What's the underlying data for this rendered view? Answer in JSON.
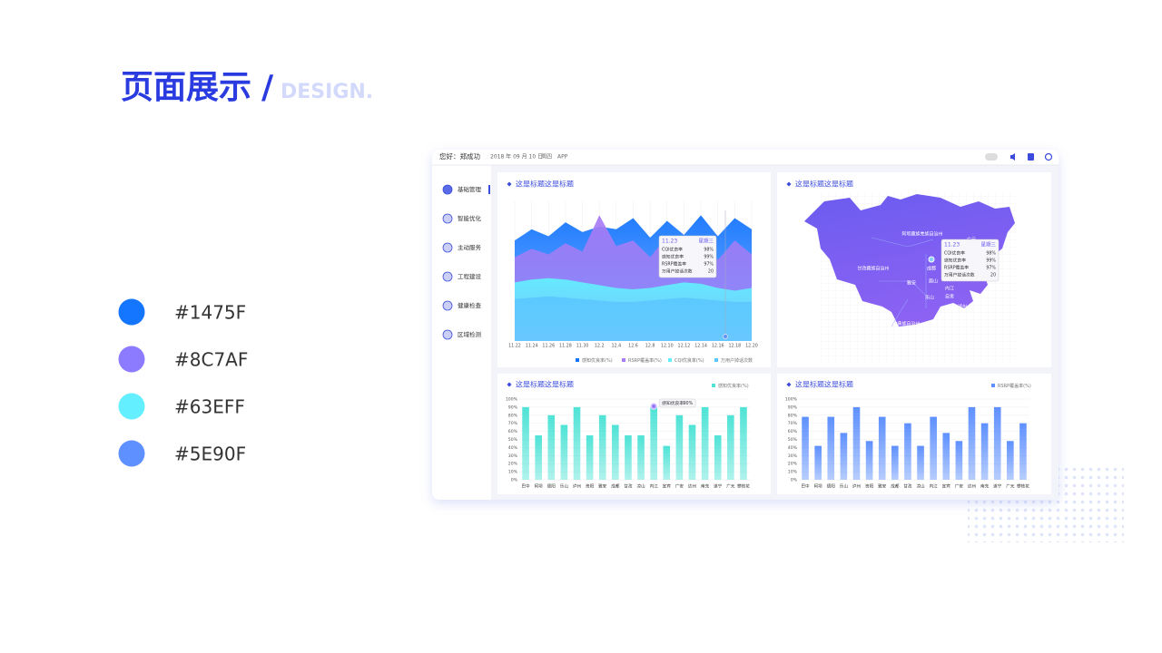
{
  "header": {
    "title": "页面展示",
    "slash": "/",
    "subtitle": "DESIGN."
  },
  "palette": [
    {
      "label": "#1475F",
      "color": "#1475ff"
    },
    {
      "label": "#8C7AF",
      "color": "#8c7aff"
    },
    {
      "label": "#63EFF",
      "color": "#63efff"
    },
    {
      "label": "#5E90F",
      "color": "#5e90ff"
    }
  ],
  "topbar": {
    "greeting": "您好：郑成功",
    "date": "2018 年 09 月 10 日",
    "weekday": "周四",
    "app": "APP"
  },
  "menu": [
    "基础管理",
    "智能优化",
    "主动服务",
    "工程建设",
    "健康检查",
    "区域检测"
  ],
  "chart_data": [
    {
      "type": "area",
      "title": "这是标题这是标题",
      "categories": [
        "11.22",
        "11.24",
        "11.26",
        "11.28",
        "11.30",
        "12.2",
        "12.4",
        "12.6",
        "12.8",
        "12.10",
        "12.12",
        "12.14",
        "12.16",
        "12.18",
        "12.20"
      ],
      "ylim": [
        0,
        100
      ],
      "series": [
        {
          "name": "感知优良率(%)",
          "color": "#1475ff",
          "values": [
            72,
            80,
            75,
            85,
            78,
            82,
            80,
            88,
            74,
            86,
            76,
            90,
            75,
            88,
            80
          ]
        },
        {
          "name": "RSRP覆盖率(%)",
          "color": "#a77cf5",
          "values": [
            60,
            66,
            62,
            70,
            64,
            90,
            68,
            72,
            60,
            75,
            62,
            70,
            58,
            72,
            62
          ]
        },
        {
          "name": "CQI优良率(%)",
          "color": "#63efff",
          "values": [
            42,
            44,
            45,
            44,
            42,
            40,
            38,
            37,
            38,
            40,
            42,
            41,
            38,
            36,
            38
          ]
        },
        {
          "name": "万用户掉话次数",
          "color": "#5bc7ff",
          "values": [
            30,
            31,
            32,
            31,
            30,
            29,
            28,
            28,
            29,
            30,
            31,
            30,
            29,
            28,
            28
          ]
        }
      ],
      "tooltip": {
        "title": "11.23",
        "weekday": "星期三",
        "rows": [
          {
            "name": "CQI优良率",
            "value": "98%"
          },
          {
            "name": "感知优良率",
            "value": "99%"
          },
          {
            "name": "RSRP覆盖率",
            "value": "97%"
          },
          {
            "name": "万用户掉话次数",
            "value": "20"
          }
        ]
      }
    },
    {
      "type": "bar",
      "title": "这是标题这是标题",
      "categories": [
        "巴中",
        "阿坝",
        "德阳",
        "乐山",
        "泸州",
        "资阳",
        "雅安",
        "成都",
        "甘孜",
        "凉山",
        "内江",
        "宜宾",
        "广安",
        "达州",
        "南充",
        "遂宁",
        "广元",
        "攀枝花"
      ],
      "series": [
        {
          "name": "感知优良率(%)",
          "color": "#4fe3d6",
          "values": [
            90,
            55,
            80,
            68,
            90,
            55,
            80,
            68,
            55,
            55,
            90,
            42,
            80,
            68,
            90,
            55,
            80,
            90
          ]
        }
      ],
      "ylim": [
        0,
        100
      ],
      "yticks": [
        {
          "value": 0,
          "label": "0%"
        },
        {
          "value": 10,
          "label": "10%"
        },
        {
          "value": 20,
          "label": "20%"
        },
        {
          "value": 30,
          "label": "30%"
        },
        {
          "value": 40,
          "label": "40%"
        },
        {
          "value": 50,
          "label": "50%"
        },
        {
          "value": 60,
          "label": "60%"
        },
        {
          "value": 70,
          "label": "70%"
        },
        {
          "value": 80,
          "label": "80%"
        },
        {
          "value": 90,
          "label": "90%"
        },
        {
          "value": 100,
          "label": "100%"
        }
      ],
      "tooltip": {
        "name": "感知优良率",
        "value": "90%"
      }
    },
    {
      "type": "bar",
      "title": "这是标题这是标题",
      "categories": [
        "巴中",
        "阿坝",
        "德阳",
        "乐山",
        "泸州",
        "资阳",
        "雅安",
        "成都",
        "甘孜",
        "凉山",
        "内江",
        "宜宾",
        "广安",
        "达州",
        "南充",
        "遂宁",
        "广元",
        "攀枝花"
      ],
      "series": [
        {
          "name": "RSRP覆盖率(%)",
          "color": "#5e90ff",
          "values": [
            78,
            42,
            78,
            58,
            90,
            48,
            78,
            42,
            70,
            42,
            78,
            58,
            48,
            90,
            70,
            90,
            48,
            70
          ]
        }
      ],
      "ylim": [
        0,
        100
      ],
      "yticks": [
        {
          "value": 0,
          "label": "0%"
        },
        {
          "value": 10,
          "label": "10%"
        },
        {
          "value": 20,
          "label": "20%"
        },
        {
          "value": 30,
          "label": "30%"
        },
        {
          "value": 40,
          "label": "40%"
        },
        {
          "value": 50,
          "label": "50%"
        },
        {
          "value": 60,
          "label": "60%"
        },
        {
          "value": 70,
          "label": "70%"
        },
        {
          "value": 80,
          "label": "80%"
        },
        {
          "value": 90,
          "label": "90%"
        },
        {
          "value": 100,
          "label": "100%"
        }
      ]
    }
  ],
  "map": {
    "title": "这是标题这是标题",
    "labels": [
      "阿坝藏族羌族自治州",
      "甘孜藏族自治州",
      "广元",
      "成都",
      "雅安",
      "眉山",
      "乐山",
      "内江",
      "自贡",
      "泸州",
      "宜宾",
      "凉山彝族自治州",
      "攀枝花"
    ],
    "tooltip": {
      "title": "11.23",
      "weekday": "星期三",
      "rows": [
        {
          "name": "CQI优良率",
          "value": "98%"
        },
        {
          "name": "感知优良率",
          "value": "99%"
        },
        {
          "name": "RSRP覆盖率",
          "value": "97%"
        },
        {
          "name": "万用户掉话次数",
          "value": "20"
        }
      ]
    }
  }
}
